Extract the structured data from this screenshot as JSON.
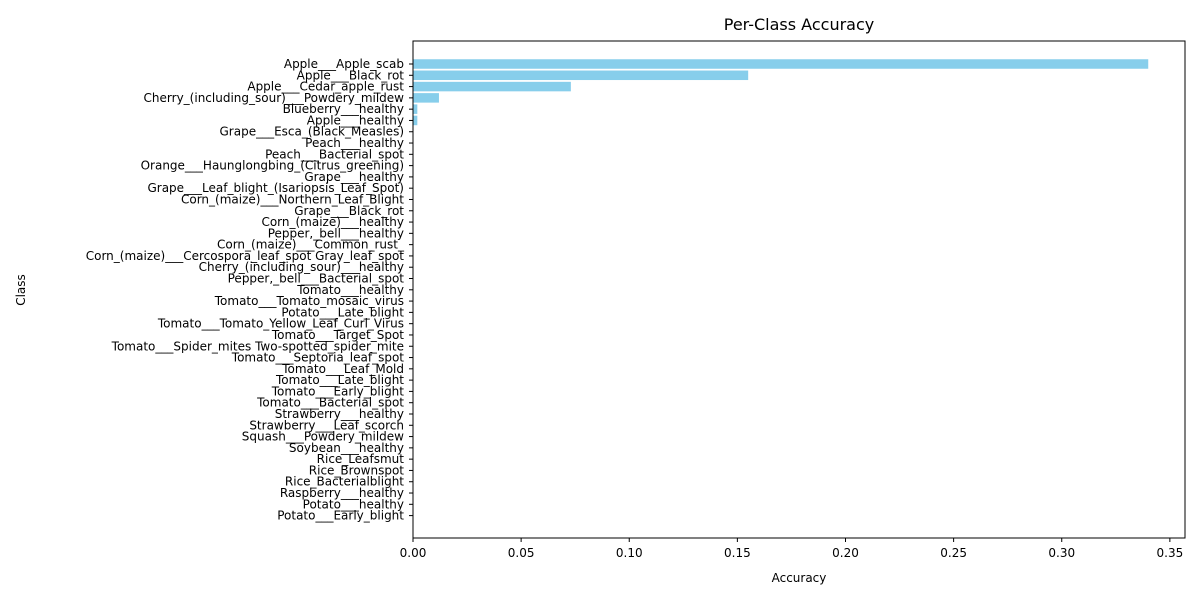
{
  "chart_data": {
    "type": "bar",
    "orientation": "horizontal",
    "title": "Per-Class Accuracy",
    "xlabel": "Accuracy",
    "ylabel": "Class",
    "bar_color": "#87ceeb",
    "xlim": [
      0,
      0.357
    ],
    "xticks": [
      "0.00",
      "0.05",
      "0.10",
      "0.15",
      "0.20",
      "0.25",
      "0.30",
      "0.35"
    ],
    "grid": false,
    "categories": [
      "Apple___Apple_scab",
      "Apple___Black_rot",
      "Apple___Cedar_apple_rust",
      "Cherry_(including_sour)___Powdery_mildew",
      "Blueberry___healthy",
      "Apple___healthy",
      "Grape___Esca_(Black_Measles)",
      "Peach___healthy",
      "Peach___Bacterial_spot",
      "Orange___Haunglongbing_(Citrus_greening)",
      "Grape___healthy",
      "Grape___Leaf_blight_(Isariopsis_Leaf_Spot)",
      "Corn_(maize)___Northern_Leaf_Blight",
      "Grape___Black_rot",
      "Corn_(maize)___healthy",
      "Pepper,_bell___healthy",
      "Corn_(maize)___Common_rust_",
      "Corn_(maize)___Cercospora_leaf_spot Gray_leaf_spot",
      "Cherry_(including_sour)___healthy",
      "Pepper,_bell___Bacterial_spot",
      "Tomato___healthy",
      "Tomato___Tomato_mosaic_virus",
      "Potato___Late_blight",
      "Tomato___Tomato_Yellow_Leaf_Curl_Virus",
      "Tomato___Target_Spot",
      "Tomato___Spider_mites Two-spotted_spider_mite",
      "Tomato___Septoria_leaf_spot",
      "Tomato___Leaf_Mold",
      "Tomato___Late_blight",
      "Tomato___Early_blight",
      "Tomato___Bacterial_spot",
      "Strawberry___healthy",
      "Strawberry___Leaf_scorch",
      "Squash___Powdery_mildew",
      "Soybean___healthy",
      "Rice_Leafsmut",
      "Rice_Brownspot",
      "Rice_Bacterialblight",
      "Raspberry___healthy",
      "Potato___healthy",
      "Potato___Early_blight"
    ],
    "values": [
      0.34,
      0.155,
      0.073,
      0.012,
      0.002,
      0.002,
      0,
      0,
      0,
      0,
      0,
      0,
      0,
      0,
      0,
      0,
      0,
      0,
      0,
      0,
      0,
      0,
      0,
      0,
      0,
      0,
      0,
      0,
      0,
      0,
      0,
      0,
      0,
      0,
      0,
      0,
      0,
      0,
      0,
      0,
      0
    ]
  }
}
